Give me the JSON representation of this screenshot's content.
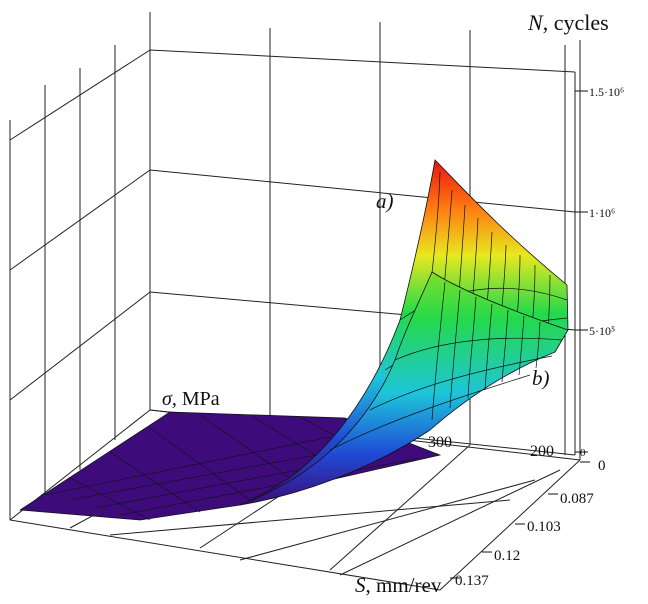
{
  "chart_data": {
    "type": "surface3d",
    "axes": {
      "z": {
        "symbol": "N",
        "unit": ", cycles",
        "ticks": [
          "5·10⁵",
          "1·10⁶",
          "1.5·10⁶"
        ],
        "zero_tick": "0"
      },
      "sigma": {
        "symbol": "σ",
        "unit": ", MPa",
        "ticks": [
          "300",
          "200"
        ]
      },
      "s": {
        "symbol": "S",
        "unit": ", mm/rev",
        "ticks": [
          "0",
          "0.087",
          "0.103",
          "0.12",
          "0.137"
        ]
      }
    },
    "surfaces": [
      {
        "name": "a)",
        "peak_N": 1250000,
        "s_edge_N": 750000
      },
      {
        "name": "b)",
        "peak_N": 750000,
        "s_edge_N": 450000
      }
    ],
    "colormap": [
      "#3d0c7a",
      "#1f4bd6",
      "#1ec5d9",
      "#25d94a",
      "#e8e81e",
      "#ff7a12",
      "#e8140e"
    ],
    "grid": true
  }
}
